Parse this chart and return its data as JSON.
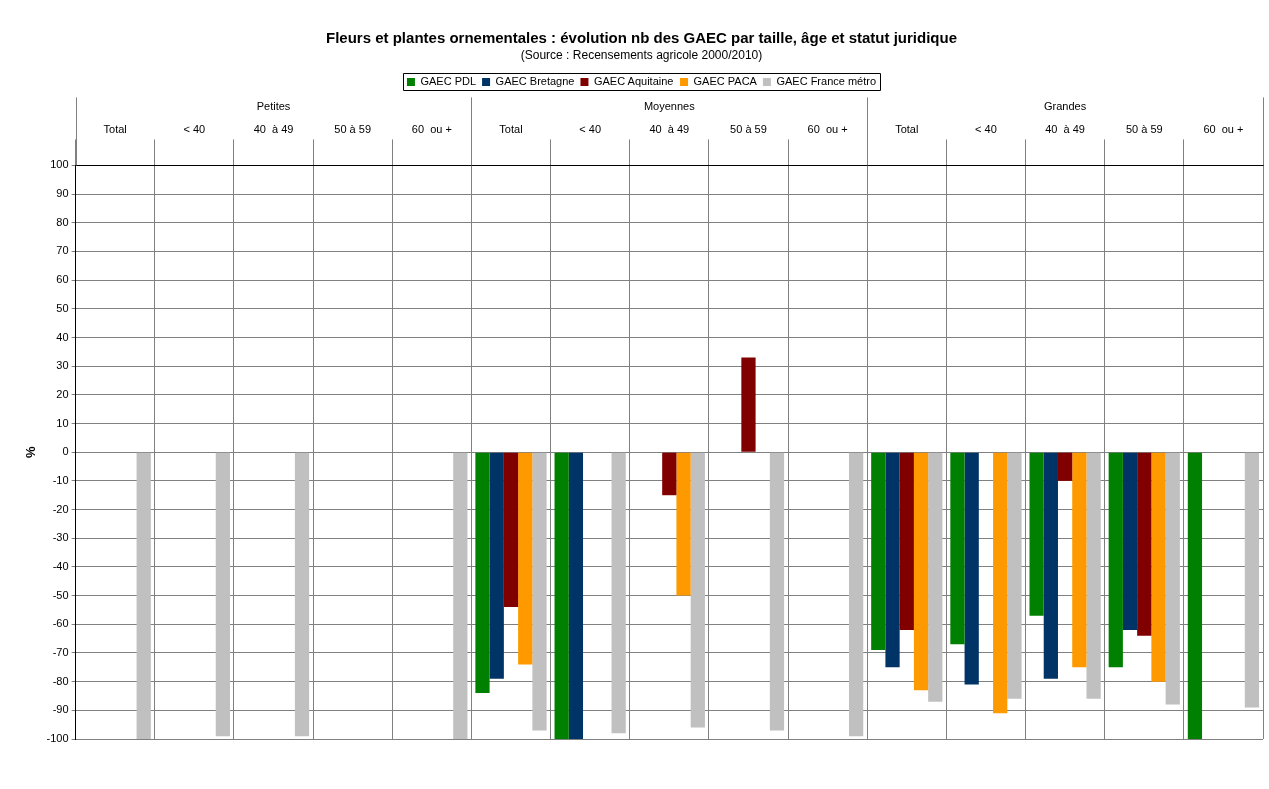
{
  "chart_data": {
    "type": "bar",
    "title": "Fleurs et plantes ornementales : évolution nb des GAEC par taille, âge et statut juridique",
    "subtitle": "(Source : Recensements agricole 2000/2010)",
    "ylabel": "%",
    "categories": [
      "Total",
      "< 40",
      "40  à 49",
      "50 à 59",
      "60  ou +",
      "Total",
      "< 40",
      "40  à 49",
      "50 à 59",
      "60  ou +",
      "Total",
      "< 40",
      "40  à 49",
      "50 à 59",
      "60  ou +"
    ],
    "annotations": [
      "Petites",
      "Moyennes",
      "Grandes"
    ],
    "series": [
      {
        "name": "GAEC PDL",
        "color": "#008000",
        "values": [
          null,
          null,
          null,
          null,
          null,
          -84,
          -100,
          null,
          null,
          null,
          -69,
          -67,
          -57,
          -75,
          -100
        ]
      },
      {
        "name": "GAEC Bretagne",
        "color": "#003366",
        "values": [
          null,
          null,
          null,
          null,
          null,
          -79,
          -100,
          null,
          null,
          null,
          -75,
          -81,
          -79,
          -62,
          null
        ]
      },
      {
        "name": "GAEC Aquitaine",
        "color": "#800000",
        "values": [
          null,
          null,
          null,
          null,
          null,
          -54,
          null,
          -15,
          33,
          null,
          -62,
          null,
          -10,
          -64,
          null
        ]
      },
      {
        "name": "GAEC PACA",
        "color": "#ff9900",
        "values": [
          null,
          null,
          null,
          null,
          null,
          -74,
          null,
          -50,
          null,
          null,
          -83,
          -91,
          -75,
          -80,
          null
        ]
      },
      {
        "name": "GAEC France métro",
        "color": "#c0c0c0",
        "values": [
          -100,
          -99,
          -99,
          null,
          -100,
          -97,
          -98,
          -96,
          -97,
          -99,
          -87,
          -86,
          -86,
          -88,
          -89
        ]
      }
    ],
    "ylim": [
      -100,
      100
    ],
    "yticks": [
      -100,
      -90,
      -80,
      -70,
      -60,
      -50,
      -40,
      -30,
      -20,
      -10,
      0,
      10,
      20,
      30,
      40,
      50,
      60,
      70,
      80,
      90,
      100
    ],
    "grid": true,
    "legend": "top"
  }
}
